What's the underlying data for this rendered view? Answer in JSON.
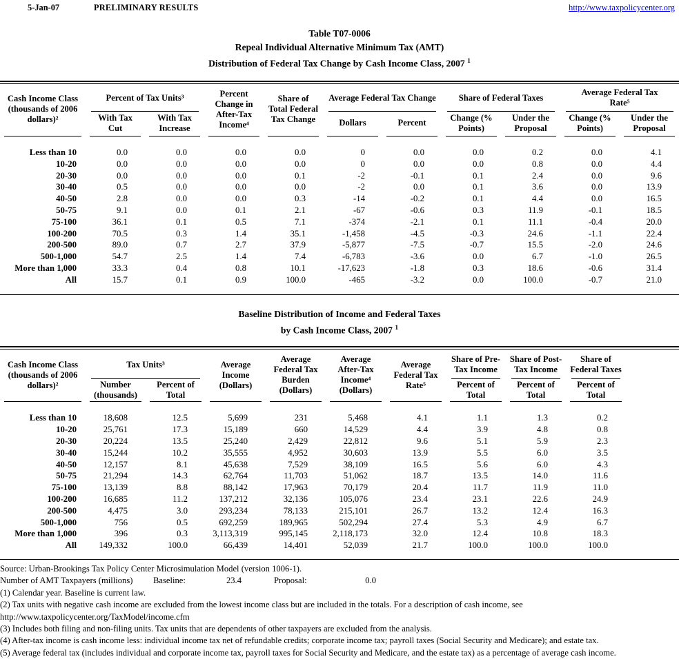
{
  "topbar": {
    "date": "5-Jan-07",
    "status": "PRELIMINARY RESULTS",
    "url": "http://www.taxpolicycenter.org"
  },
  "title": {
    "line1": "Table T07-0006",
    "line2": "Repeal Individual Alternative Minimum Tax (AMT)",
    "line3": "Distribution of Federal Tax Change by Cash Income Class, 2007",
    "sup": "1"
  },
  "table1": {
    "col_income_class": "Cash Income Class\n(thousands of 2006\ndollars)²",
    "grp_tax_units": "Percent of Tax Units³",
    "sub_with_cut": "With Tax\nCut",
    "sub_with_increase": "With Tax\nIncrease",
    "col_pct_change": "Percent\nChange in\nAfter-Tax\nIncome⁴",
    "col_share_total": "Share of\nTotal Federal\nTax Change",
    "grp_avg_change": "Average Federal Tax Change",
    "sub_dollars": "Dollars",
    "sub_percent": "Percent",
    "grp_share_taxes": "Share of Federal Taxes",
    "sub_change_pts": "Change (%\nPoints)",
    "sub_under_proposal": "Under the\nProposal",
    "grp_avg_rate": "Average Federal Tax\nRate⁵",
    "rows": [
      [
        "Less than 10",
        "0.0",
        "0.0",
        "0.0",
        "0.0",
        "0",
        "0.0",
        "0.0",
        "0.2",
        "0.0",
        "4.1"
      ],
      [
        "10-20",
        "0.0",
        "0.0",
        "0.0",
        "0.0",
        "0",
        "0.0",
        "0.0",
        "0.8",
        "0.0",
        "4.4"
      ],
      [
        "20-30",
        "0.0",
        "0.0",
        "0.0",
        "0.1",
        "-2",
        "-0.1",
        "0.1",
        "2.4",
        "0.0",
        "9.6"
      ],
      [
        "30-40",
        "0.5",
        "0.0",
        "0.0",
        "0.0",
        "-2",
        "0.0",
        "0.1",
        "3.6",
        "0.0",
        "13.9"
      ],
      [
        "40-50",
        "2.8",
        "0.0",
        "0.0",
        "0.3",
        "-14",
        "-0.2",
        "0.1",
        "4.4",
        "0.0",
        "16.5"
      ],
      [
        "50-75",
        "9.1",
        "0.0",
        "0.1",
        "2.1",
        "-67",
        "-0.6",
        "0.3",
        "11.9",
        "-0.1",
        "18.5"
      ],
      [
        "75-100",
        "36.1",
        "0.1",
        "0.5",
        "7.1",
        "-374",
        "-2.1",
        "0.1",
        "11.1",
        "-0.4",
        "20.0"
      ],
      [
        "100-200",
        "70.5",
        "0.3",
        "1.4",
        "35.1",
        "-1,458",
        "-4.5",
        "-0.3",
        "24.6",
        "-1.1",
        "22.4"
      ],
      [
        "200-500",
        "89.0",
        "0.7",
        "2.7",
        "37.9",
        "-5,877",
        "-7.5",
        "-0.7",
        "15.5",
        "-2.0",
        "24.6"
      ],
      [
        "500-1,000",
        "54.7",
        "2.5",
        "1.4",
        "7.4",
        "-6,783",
        "-3.6",
        "0.0",
        "6.7",
        "-1.0",
        "26.5"
      ],
      [
        "More than 1,000",
        "33.3",
        "0.4",
        "0.8",
        "10.1",
        "-17,623",
        "-1.8",
        "0.3",
        "18.6",
        "-0.6",
        "31.4"
      ],
      [
        "All",
        "15.7",
        "0.1",
        "0.9",
        "100.0",
        "-465",
        "-3.2",
        "0.0",
        "100.0",
        "-0.7",
        "21.0"
      ]
    ]
  },
  "table2": {
    "title_line1": "Baseline Distribution of Income and Federal Taxes",
    "title_line2": "by Cash Income Class, 2007",
    "title_sup": "1",
    "col_income_class": "Cash Income Class\n(thousands of 2006\ndollars)²",
    "grp_tax_units": "Tax Units³",
    "sub_number": "Number\n(thousands)",
    "sub_pct_total": "Percent of\nTotal",
    "col_avg_income": "Average\nIncome\n(Dollars)",
    "col_avg_burden": "Average\nFederal Tax\nBurden\n(Dollars)",
    "col_avg_after": "Average\nAfter-Tax\nIncome⁴\n(Dollars)",
    "col_avg_rate": "Average\nFederal Tax\nRate⁵",
    "grp_share_pre": "Share of Pre-\nTax Income",
    "grp_share_post": "Share of Post-\nTax Income",
    "grp_share_fed": "Share of\nFederal Taxes",
    "rows": [
      [
        "Less than 10",
        "18,608",
        "12.5",
        "5,699",
        "231",
        "5,468",
        "4.1",
        "1.1",
        "1.3",
        "0.2"
      ],
      [
        "10-20",
        "25,761",
        "17.3",
        "15,189",
        "660",
        "14,529",
        "4.4",
        "3.9",
        "4.8",
        "0.8"
      ],
      [
        "20-30",
        "20,224",
        "13.5",
        "25,240",
        "2,429",
        "22,812",
        "9.6",
        "5.1",
        "5.9",
        "2.3"
      ],
      [
        "30-40",
        "15,244",
        "10.2",
        "35,555",
        "4,952",
        "30,603",
        "13.9",
        "5.5",
        "6.0",
        "3.5"
      ],
      [
        "40-50",
        "12,157",
        "8.1",
        "45,638",
        "7,529",
        "38,109",
        "16.5",
        "5.6",
        "6.0",
        "4.3"
      ],
      [
        "50-75",
        "21,294",
        "14.3",
        "62,764",
        "11,703",
        "51,062",
        "18.7",
        "13.5",
        "14.0",
        "11.6"
      ],
      [
        "75-100",
        "13,139",
        "8.8",
        "88,142",
        "17,963",
        "70,179",
        "20.4",
        "11.7",
        "11.9",
        "11.0"
      ],
      [
        "100-200",
        "16,685",
        "11.2",
        "137,212",
        "32,136",
        "105,076",
        "23.4",
        "23.1",
        "22.6",
        "24.9"
      ],
      [
        "200-500",
        "4,475",
        "3.0",
        "293,234",
        "78,133",
        "215,101",
        "26.7",
        "13.2",
        "12.4",
        "16.3"
      ],
      [
        "500-1,000",
        "756",
        "0.5",
        "692,259",
        "189,965",
        "502,294",
        "27.4",
        "5.3",
        "4.9",
        "6.7"
      ],
      [
        "More than 1,000",
        "396",
        "0.3",
        "3,113,319",
        "995,145",
        "2,118,173",
        "32.0",
        "12.4",
        "10.8",
        "18.3"
      ],
      [
        "All",
        "149,332",
        "100.0",
        "66,439",
        "14,401",
        "52,039",
        "21.7",
        "100.0",
        "100.0",
        "100.0"
      ]
    ]
  },
  "notes": {
    "source": "Source: Urban-Brookings Tax Policy Center Microsimulation Model (version 1006-1).",
    "amt_label": "Number of AMT Taxpayers (millions)",
    "baseline_label": "Baseline:",
    "baseline_value": "23.4",
    "proposal_label": "Proposal:",
    "proposal_value": "0.0"
  },
  "footnotes": [
    "(1) Calendar year.  Baseline is current law.",
    "(2) Tax units with negative cash income are excluded from the lowest income class but are included in the totals. For a description of cash income, see",
    "http://www.taxpolicycenter.org/TaxModel/income.cfm",
    "(3) Includes both filing and non-filing units.  Tax units that are dependents of other taxpayers are excluded from the analysis.",
    "(4) After-tax income is cash income less: individual income tax net of refundable credits; corporate income tax; payroll taxes (Social Security and Medicare); and estate tax.",
    "(5) Average federal tax (includes individual and corporate income tax, payroll taxes for Social Security and Medicare, and the estate tax) as a percentage of average cash income."
  ]
}
